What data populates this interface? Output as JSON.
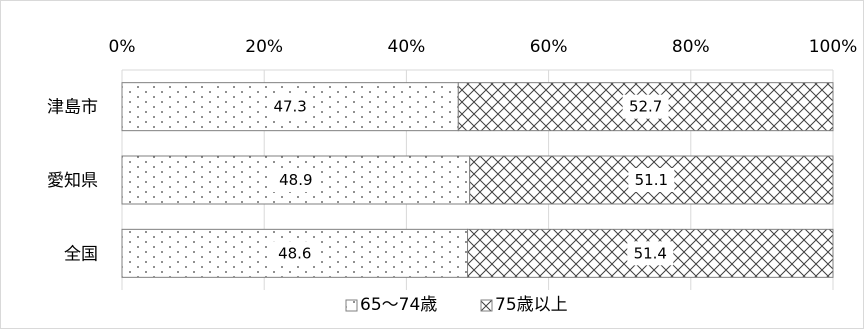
{
  "chart_data": {
    "type": "bar",
    "orientation": "horizontal",
    "stacked": "percent",
    "title": "",
    "xlabel": "",
    "ylabel": "",
    "xlim": [
      0,
      100
    ],
    "x_ticks": [
      "0%",
      "20%",
      "40%",
      "60%",
      "80%",
      "100%"
    ],
    "categories": [
      "津島市",
      "愛知県",
      "全国"
    ],
    "series": [
      {
        "name": "65〜74歳",
        "values": [
          47.3,
          48.9,
          48.6
        ],
        "pattern": "dots"
      },
      {
        "name": "75歳以上",
        "values": [
          52.7,
          51.1,
          51.4
        ],
        "pattern": "crosshatch"
      }
    ],
    "data_labels": [
      [
        "47.3",
        "48.9",
        "48.6"
      ],
      [
        "52.7",
        "51.1",
        "51.4"
      ]
    ],
    "legend_position": "bottom",
    "x_axis_position": "top",
    "gridlines": true,
    "colors": {
      "bar_outline": "#7f7f7f",
      "pattern": "#404040",
      "grid": "#d9d9d9"
    }
  }
}
